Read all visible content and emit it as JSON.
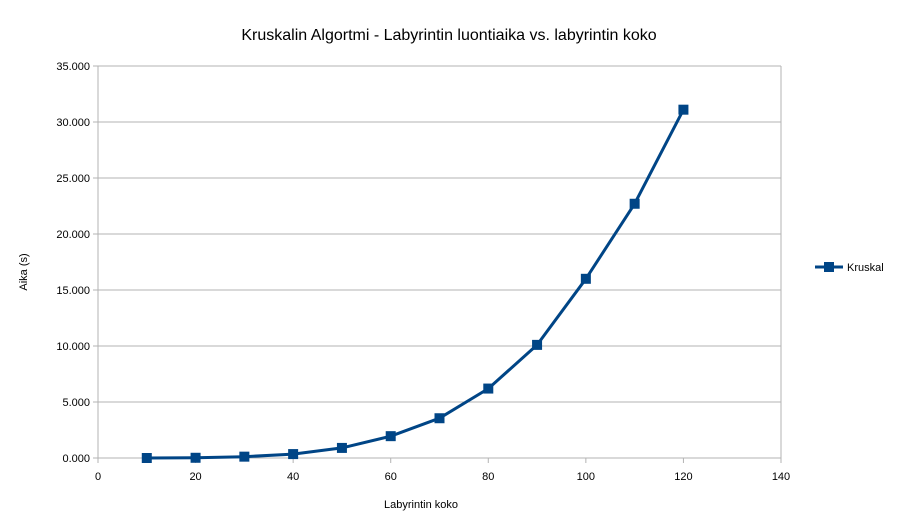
{
  "chart_data": {
    "type": "line",
    "title": "Kruskalin Algortmi - Labyrintin luontiaika vs. labyrintin koko",
    "xlabel": "Labyrintin koko",
    "ylabel": "Aika (s)",
    "xlim": [
      0,
      140
    ],
    "ylim": [
      0,
      35000
    ],
    "x_ticks": [
      0,
      20,
      40,
      60,
      80,
      100,
      120,
      140
    ],
    "x_tick_labels": [
      "0",
      "20",
      "40",
      "60",
      "80",
      "100",
      "120",
      "140"
    ],
    "y_ticks": [
      0,
      5000,
      10000,
      15000,
      20000,
      25000,
      30000,
      35000
    ],
    "y_tick_labels": [
      "0.000",
      "5.000",
      "10.000",
      "15.000",
      "20.000",
      "25.000",
      "30.000",
      "35.000"
    ],
    "grid": true,
    "legend_position": "right",
    "series": [
      {
        "name": "Kruskal",
        "color": "#004586",
        "marker": "square",
        "x": [
          10,
          20,
          30,
          40,
          50,
          60,
          70,
          80,
          90,
          100,
          110,
          120
        ],
        "y": [
          0,
          20,
          120,
          350,
          900,
          1950,
          3550,
          6200,
          10100,
          16000,
          22700,
          31100
        ]
      }
    ]
  }
}
